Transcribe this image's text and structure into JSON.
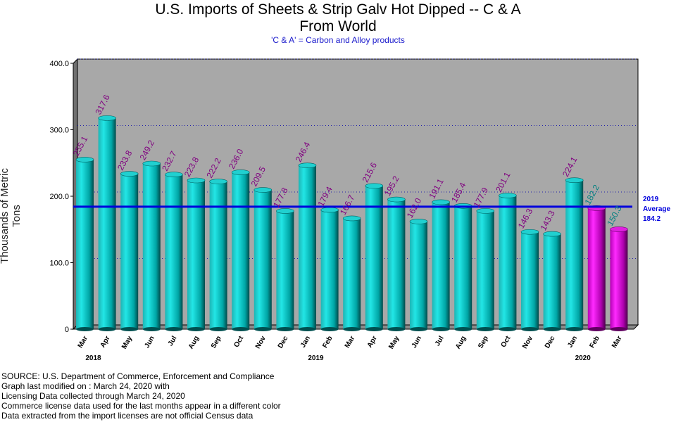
{
  "chart_data": {
    "type": "bar",
    "title": "U.S. Imports of Sheets & Strip Galv Hot Dipped -- C & A",
    "title_line2": "From World",
    "subtitle": "'C & A' = Carbon and Alloy products",
    "ylabel": "Thousands of Metric Tons",
    "ylim": [
      0,
      400
    ],
    "yticks": [
      "0",
      "100.0",
      "200.0",
      "300.0",
      "400.0"
    ],
    "grid": "horizontal dotted",
    "categories": [
      "Mar",
      "Apr",
      "May",
      "Jun",
      "Jul",
      "Aug",
      "Sep",
      "Oct",
      "Nov",
      "Dec",
      "Jan",
      "Feb",
      "Mar",
      "Apr",
      "May",
      "Jun",
      "Jul",
      "Aug",
      "Sep",
      "Oct",
      "Nov",
      "Dec",
      "Jan",
      "Feb",
      "Mar"
    ],
    "year_labels": [
      {
        "label": "2018",
        "index": 0
      },
      {
        "label": "2019",
        "index": 10
      },
      {
        "label": "2020",
        "index": 22
      }
    ],
    "values": [
      255.1,
      317.6,
      233.8,
      249.2,
      232.7,
      223.8,
      222.2,
      236.0,
      209.5,
      177.8,
      246.4,
      179.4,
      166.7,
      215.6,
      195.2,
      162.0,
      191.1,
      185.4,
      177.9,
      201.1,
      146.3,
      143.3,
      224.1,
      182.2,
      150.3
    ],
    "value_labels": [
      "255.1",
      "317.6",
      "233.8",
      "249.2",
      "232.7",
      "223.8",
      "222.2",
      "236.0",
      "209.5",
      "177.8",
      "246.4",
      "179.4",
      "166.7",
      "215.6",
      "195.2",
      "162.0",
      "191.1",
      "185.4",
      "177.9",
      "201.1",
      "146.3",
      "143.3",
      "224.1",
      "182.2",
      "150.3"
    ],
    "license_data_from_index": 23,
    "average": {
      "value": 184.2,
      "line1": "2019",
      "line2": "Average",
      "line3": "184.2"
    },
    "colors": {
      "bar": "#00c8c8",
      "bar_license": "#d000d0",
      "plot_bg": "#a8a8a8",
      "average_line": "#0000dd",
      "value_label": "#800080",
      "value_label_license": "#008080"
    }
  },
  "footer": [
    "SOURCE: U.S. Department of Commerce, Enforcement and Compliance",
    "Graph last modified on : March 24, 2020     with",
    "Licensing Data collected through March 24, 2020",
    "Commerce license data used for the last months appear in a different color",
    "Data extracted from the import licenses are not official Census data"
  ]
}
